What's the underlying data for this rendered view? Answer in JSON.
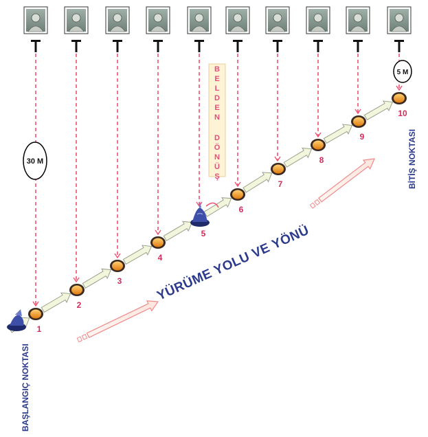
{
  "stations": [
    {
      "number": "1"
    },
    {
      "number": "2"
    },
    {
      "number": "3"
    },
    {
      "number": "4"
    },
    {
      "number": "5"
    },
    {
      "number": "6"
    },
    {
      "number": "7"
    },
    {
      "number": "8"
    },
    {
      "number": "9"
    },
    {
      "number": "10"
    }
  ],
  "distance_long": "30 M",
  "distance_short": "5 M",
  "turn_label": "BELDEN DÖNÜŞ",
  "path_label": "YÜRÜME YOLU VE YÖNÜ",
  "start_label": "BAŞLANGIÇ NOKTASI",
  "end_label": "BİTİŞ NOKTASI",
  "colors": {
    "station_number": "#d42b5a",
    "dashed_line": "#f05070",
    "path_label": "#2b3a8c",
    "vertical_label": "#2b3a8c",
    "marker_fill": "#f0a030",
    "marker_ring": "#3a2a20",
    "arrow_fill": "#f2f6dc",
    "turn_box_fill": "#fff3d6",
    "turn_label": "#e0507a"
  },
  "icons": {
    "photo": "face-target-photo-icon",
    "cone": "traffic-cone-icon"
  }
}
